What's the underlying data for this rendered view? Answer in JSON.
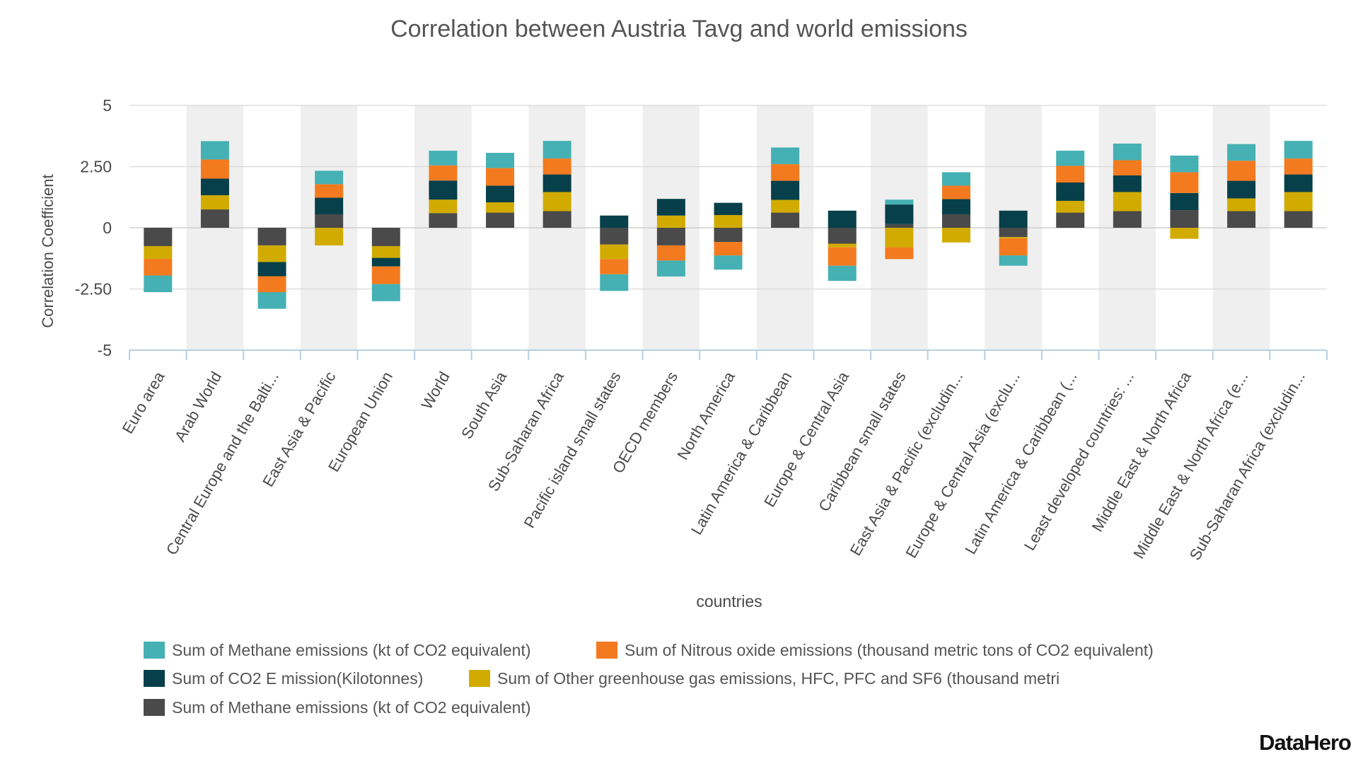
{
  "chart_data": {
    "type": "bar",
    "stacked": true,
    "title": "Correlation between Austria Tavg and world emissions",
    "xlabel": "countries",
    "ylabel": "Correlation Coefficient",
    "ylim": [
      -5,
      5
    ],
    "yticks": [
      5,
      2.5,
      0,
      -2.5,
      -5
    ],
    "ytick_labels": [
      "5",
      "2.50",
      "0",
      "-2.50",
      "-5"
    ],
    "grid": true,
    "legend_position": "bottom",
    "categories": [
      "Euro area",
      "Arab World",
      "Central Europe and the Balti...",
      "East Asia & Pacific",
      "European Union",
      "World",
      "South Asia",
      "Sub-Saharan Africa",
      "Pacific island small states",
      "OECD members",
      "North America",
      "Latin America & Caribbean",
      "Europe & Central Asia",
      "Caribbean small states",
      "East Asia & Pacific (excludin...",
      "Europe & Central Asia (exclu...",
      "Latin America & Caribbean (...",
      "Least developed countries: ...",
      "Middle East & North Africa",
      "Middle East & North Africa (e...",
      "Sub-Saharan Africa (excludin..."
    ],
    "series": [
      {
        "name": "Sum of Methane emissions (kt of CO2 equivalent)",
        "color": "#4a4a4a",
        "values": [
          -0.75,
          0.75,
          -0.72,
          0.55,
          -0.75,
          0.6,
          0.62,
          0.68,
          -0.68,
          -0.72,
          -0.58,
          0.62,
          -0.65,
          0.15,
          0.55,
          -0.38,
          0.62,
          0.68,
          0.72,
          0.68,
          0.68
        ]
      },
      {
        "name": "Sum of Other greenhouse gas emissions, HFC, PFC and SF6 (thousand metri",
        "color": "#d1ab00",
        "values": [
          -0.52,
          0.58,
          -0.68,
          -0.72,
          -0.48,
          0.55,
          0.42,
          0.78,
          -0.6,
          0.5,
          0.52,
          0.52,
          -0.15,
          -0.8,
          -0.6,
          -0.05,
          0.48,
          0.78,
          -0.45,
          0.52,
          0.78
        ]
      },
      {
        "name": "Sum of CO2 E mission(Kilotonnes)",
        "color": "#07404a",
        "values": [
          0,
          0.68,
          -0.58,
          0.68,
          -0.35,
          0.78,
          0.68,
          0.72,
          0.5,
          0.68,
          0.5,
          0.78,
          0.7,
          0.8,
          0.62,
          0.7,
          0.75,
          0.68,
          0.7,
          0.72,
          0.72
        ]
      },
      {
        "name": "Sum of Nitrous oxide emissions (thousand metric tons of CO2 equivalent)",
        "color": "#f47a1f",
        "values": [
          -0.68,
          0.78,
          -0.65,
          0.55,
          -0.72,
          0.62,
          0.72,
          0.65,
          -0.62,
          -0.62,
          -0.55,
          0.68,
          -0.75,
          -0.48,
          0.55,
          -0.7,
          0.68,
          0.62,
          0.85,
          0.82,
          0.65
        ]
      },
      {
        "name": "Sum of Methane emissions (kt of CO2 equivalent)",
        "color": "#46b1b4",
        "values": [
          -0.68,
          0.75,
          -0.68,
          0.55,
          -0.7,
          0.6,
          0.62,
          0.72,
          -0.68,
          -0.65,
          -0.58,
          0.68,
          -0.62,
          0.2,
          0.55,
          -0.42,
          0.62,
          0.68,
          0.68,
          0.68,
          0.72
        ]
      }
    ],
    "legend_order": [
      4,
      3,
      2,
      1,
      0
    ]
  },
  "brand": "DataHero"
}
